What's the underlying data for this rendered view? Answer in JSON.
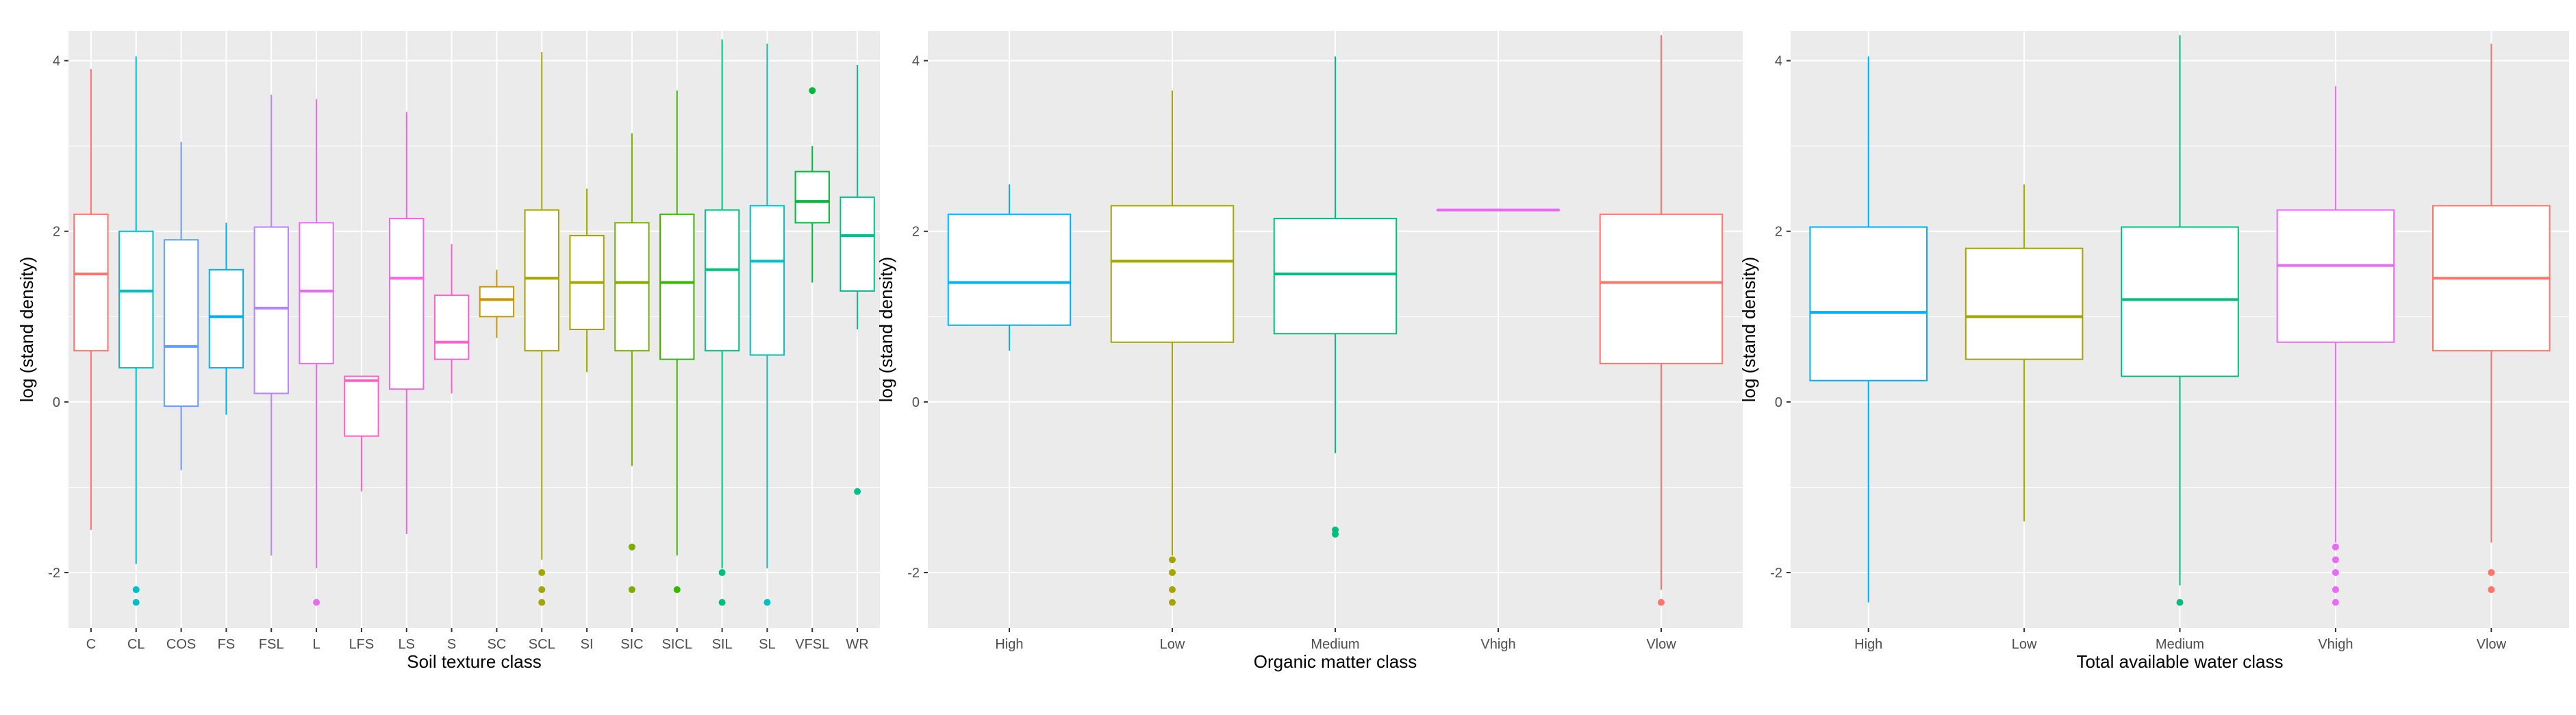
{
  "colors": {
    "panel_background": "#EBEBEB",
    "gridline": "#FFFFFF",
    "tick": "#333333",
    "box_fill": "#FFFFFF"
  },
  "chart_data": [
    {
      "type": "boxplot",
      "xlabel": "Soil texture class",
      "ylabel": "log (stand density)",
      "ylim": [
        -2.65,
        4.35
      ],
      "yticks": [
        -2,
        0,
        2,
        4
      ],
      "grid": true,
      "categories": [
        "C",
        "CL",
        "COS",
        "FS",
        "FSL",
        "L",
        "LFS",
        "LS",
        "S",
        "SC",
        "SCL",
        "SI",
        "SIC",
        "SICL",
        "SIL",
        "SL",
        "VFSL",
        "WR"
      ],
      "colors": [
        "#F8766D",
        "#00BFC4",
        "#619CFF",
        "#00B0F6",
        "#B983FF",
        "#E76BF3",
        "#FF61C3",
        "#F564E3",
        "#FD61D1",
        "#C99800",
        "#A3A500",
        "#A3A500",
        "#7CAE00",
        "#39B600",
        "#00BF7D",
        "#00BFC4",
        "#00BA38",
        "#00C08B"
      ],
      "boxes": [
        {
          "min": -1.5,
          "q1": 0.6,
          "median": 1.5,
          "q3": 2.2,
          "max": 3.9,
          "outliers": []
        },
        {
          "min": -1.9,
          "q1": 0.4,
          "median": 1.3,
          "q3": 2.0,
          "max": 4.05,
          "outliers": [
            -2.2,
            -2.35
          ]
        },
        {
          "min": -0.8,
          "q1": -0.05,
          "median": 0.65,
          "q3": 1.9,
          "max": 3.05,
          "outliers": []
        },
        {
          "min": -0.15,
          "q1": 0.4,
          "median": 1.0,
          "q3": 1.55,
          "max": 2.1,
          "outliers": []
        },
        {
          "min": -1.8,
          "q1": 0.1,
          "median": 1.1,
          "q3": 2.05,
          "max": 3.6,
          "outliers": []
        },
        {
          "min": -1.95,
          "q1": 0.45,
          "median": 1.3,
          "q3": 2.1,
          "max": 3.55,
          "outliers": [
            -2.35
          ]
        },
        {
          "min": -1.05,
          "q1": -0.4,
          "median": 0.25,
          "q3": 0.3,
          "max": 0.3,
          "outliers": []
        },
        {
          "min": -1.55,
          "q1": 0.15,
          "median": 1.45,
          "q3": 2.15,
          "max": 3.4,
          "outliers": []
        },
        {
          "min": 0.1,
          "q1": 0.5,
          "median": 0.7,
          "q3": 1.25,
          "max": 1.85,
          "outliers": []
        },
        {
          "min": 0.75,
          "q1": 1.0,
          "median": 1.2,
          "q3": 1.35,
          "max": 1.55,
          "outliers": []
        },
        {
          "min": -1.85,
          "q1": 0.6,
          "median": 1.45,
          "q3": 2.25,
          "max": 4.1,
          "outliers": [
            -2.0,
            -2.2,
            -2.35
          ]
        },
        {
          "min": 0.35,
          "q1": 0.85,
          "median": 1.4,
          "q3": 1.95,
          "max": 2.5,
          "outliers": []
        },
        {
          "min": -0.75,
          "q1": 0.6,
          "median": 1.4,
          "q3": 2.1,
          "max": 3.15,
          "outliers": [
            -1.7,
            -2.2
          ]
        },
        {
          "min": -1.8,
          "q1": 0.5,
          "median": 1.4,
          "q3": 2.2,
          "max": 3.65,
          "outliers": [
            -2.2
          ]
        },
        {
          "min": -1.95,
          "q1": 0.6,
          "median": 1.55,
          "q3": 2.25,
          "max": 4.25,
          "outliers": [
            -2.0,
            -2.35
          ]
        },
        {
          "min": -1.95,
          "q1": 0.55,
          "median": 1.65,
          "q3": 2.3,
          "max": 4.2,
          "outliers": [
            -2.35
          ]
        },
        {
          "min": 1.4,
          "q1": 2.1,
          "median": 2.35,
          "q3": 2.7,
          "max": 3.0,
          "outliers": [
            3.65
          ]
        },
        {
          "min": 0.85,
          "q1": 1.3,
          "median": 1.95,
          "q3": 2.4,
          "max": 3.95,
          "outliers": [
            -1.05
          ]
        }
      ]
    },
    {
      "type": "boxplot",
      "xlabel": "Organic matter class",
      "ylabel": "log (stand density)",
      "ylim": [
        -2.65,
        4.35
      ],
      "yticks": [
        -2,
        0,
        2,
        4
      ],
      "grid": true,
      "categories": [
        "High",
        "Low",
        "Medium",
        "Vhigh",
        "Vlow"
      ],
      "colors": [
        "#00B0F6",
        "#A3A500",
        "#00BF7D",
        "#E76BF3",
        "#F8766D"
      ],
      "boxes": [
        {
          "min": 0.6,
          "q1": 0.9,
          "median": 1.4,
          "q3": 2.2,
          "max": 2.55,
          "outliers": []
        },
        {
          "min": -1.8,
          "q1": 0.7,
          "median": 1.65,
          "q3": 2.3,
          "max": 3.65,
          "outliers": [
            -1.85,
            -2.0,
            -2.2,
            -2.35
          ]
        },
        {
          "min": -0.6,
          "q1": 0.8,
          "median": 1.5,
          "q3": 2.15,
          "max": 4.05,
          "outliers": [
            -1.5,
            -1.55
          ]
        },
        {
          "min": 2.25,
          "q1": 2.25,
          "median": 2.25,
          "q3": 2.25,
          "max": 2.25,
          "outliers": []
        },
        {
          "min": -2.2,
          "q1": 0.45,
          "median": 1.4,
          "q3": 2.2,
          "max": 4.3,
          "outliers": [
            -2.35
          ]
        }
      ]
    },
    {
      "type": "boxplot",
      "xlabel": "Total available water class",
      "ylabel": "log (stand density)",
      "ylim": [
        -2.65,
        4.35
      ],
      "yticks": [
        -2,
        0,
        2,
        4
      ],
      "grid": true,
      "categories": [
        "High",
        "Low",
        "Medium",
        "Vhigh",
        "Vlow"
      ],
      "colors": [
        "#00B0F6",
        "#A3A500",
        "#00BF7D",
        "#E76BF3",
        "#F8766D"
      ],
      "boxes": [
        {
          "min": -2.35,
          "q1": 0.25,
          "median": 1.05,
          "q3": 2.05,
          "max": 4.05,
          "outliers": []
        },
        {
          "min": -1.4,
          "q1": 0.5,
          "median": 1.0,
          "q3": 1.8,
          "max": 2.55,
          "outliers": []
        },
        {
          "min": -2.15,
          "q1": 0.3,
          "median": 1.2,
          "q3": 2.05,
          "max": 4.3,
          "outliers": [
            -2.35
          ]
        },
        {
          "min": -1.65,
          "q1": 0.7,
          "median": 1.6,
          "q3": 2.25,
          "max": 3.7,
          "outliers": [
            -1.7,
            -1.85,
            -2.0,
            -2.2,
            -2.35
          ]
        },
        {
          "min": -1.65,
          "q1": 0.6,
          "median": 1.45,
          "q3": 2.3,
          "max": 4.2,
          "outliers": [
            -2.0,
            -2.2
          ]
        }
      ]
    }
  ]
}
